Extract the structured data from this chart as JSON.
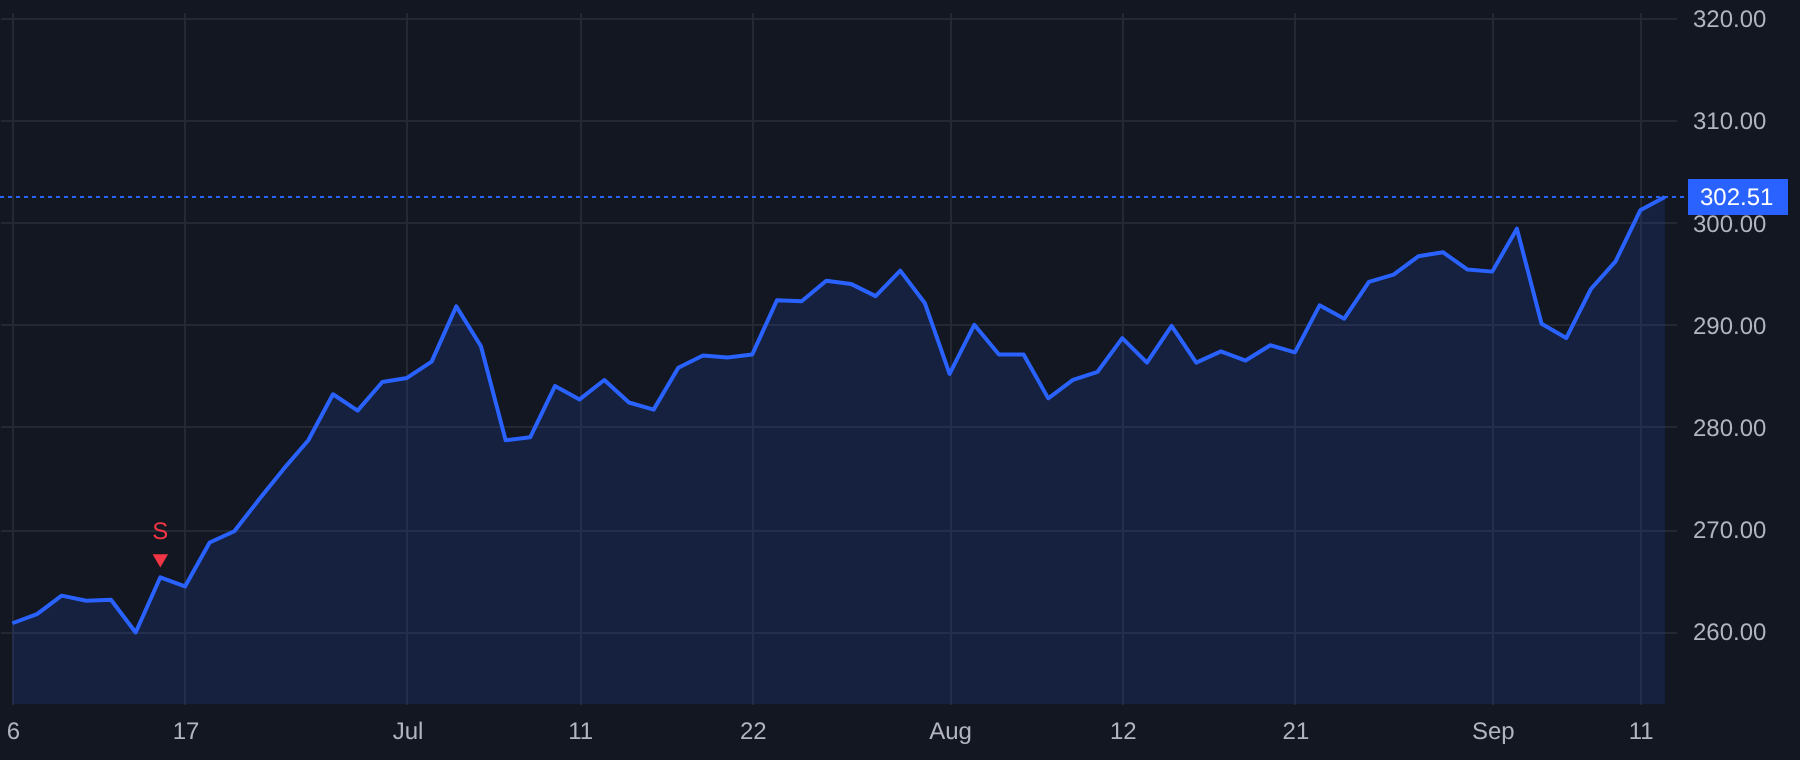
{
  "chart_data": {
    "type": "area",
    "categories": [
      "6",
      null,
      null,
      null,
      null,
      null,
      null,
      "17",
      null,
      null,
      null,
      null,
      null,
      null,
      null,
      null,
      "Jul",
      null,
      null,
      null,
      null,
      null,
      null,
      "11",
      null,
      null,
      null,
      null,
      null,
      null,
      "22",
      null,
      null,
      null,
      null,
      null,
      null,
      null,
      "Aug",
      null,
      null,
      null,
      null,
      null,
      null,
      "12",
      null,
      null,
      null,
      null,
      null,
      null,
      "21",
      null,
      null,
      null,
      null,
      null,
      null,
      null,
      "Sep",
      null,
      null,
      null,
      null,
      null,
      "11",
      null
    ],
    "series": [
      {
        "color": "#2962ff",
        "values": [
          260.8,
          261.7,
          263.5,
          263.0,
          263.1,
          259.9,
          265.3,
          264.4,
          268.7,
          269.8,
          272.9,
          275.9,
          278.7,
          283.2,
          281.6,
          284.4,
          284.8,
          286.4,
          291.8,
          287.9,
          278.7,
          279.0,
          284.0,
          282.7,
          284.6,
          282.4,
          281.7,
          285.8,
          287.0,
          286.8,
          287.1,
          292.4,
          292.3,
          294.3,
          294.0,
          292.8,
          295.3,
          292.1,
          285.2,
          290.0,
          287.1,
          287.1,
          282.8,
          284.6,
          285.4,
          288.7,
          286.3,
          289.9,
          286.3,
          287.4,
          286.5,
          288.0,
          287.3,
          291.9,
          290.6,
          294.2,
          294.9,
          296.7,
          297.1,
          295.4,
          295.2,
          299.4,
          290.1,
          288.7,
          293.5,
          296.2,
          301.2,
          302.5
        ]
      },
      {
        "type": "scatter",
        "name": "S",
        "color": "#f23645",
        "marker": "triangle",
        "values": [
          null,
          null,
          null,
          null,
          null,
          null,
          266.9,
          null,
          null,
          null,
          null,
          null,
          null,
          null,
          null,
          null,
          null,
          null,
          null,
          null,
          null,
          null,
          null,
          null,
          null,
          null,
          null,
          null,
          null,
          null,
          null,
          null,
          null,
          null,
          null,
          null,
          null,
          null,
          null,
          null,
          null,
          null,
          null,
          null,
          null,
          null,
          null,
          null,
          null,
          null,
          null,
          null,
          null,
          null,
          null,
          null,
          null,
          null,
          null,
          null,
          null,
          null,
          null,
          null,
          null,
          null,
          null,
          null
        ]
      }
    ],
    "ylim": [
      252.9,
      320.6
    ],
    "yticks": [
      {
        "value": 260,
        "label": "260.00"
      },
      {
        "value": 270,
        "label": "270.00"
      },
      {
        "value": 280,
        "label": "280.00"
      },
      {
        "value": 290,
        "label": "290.00"
      },
      {
        "value": 300,
        "label": "300.00"
      },
      {
        "value": 310,
        "label": "310.00"
      },
      {
        "value": 320,
        "label": "320.00"
      }
    ],
    "ref_lines": [
      {
        "axis": "y",
        "value": 302.51,
        "label": "302.51",
        "color": "#2962ff",
        "line_style": "dotted"
      }
    ],
    "grid": true
  }
}
